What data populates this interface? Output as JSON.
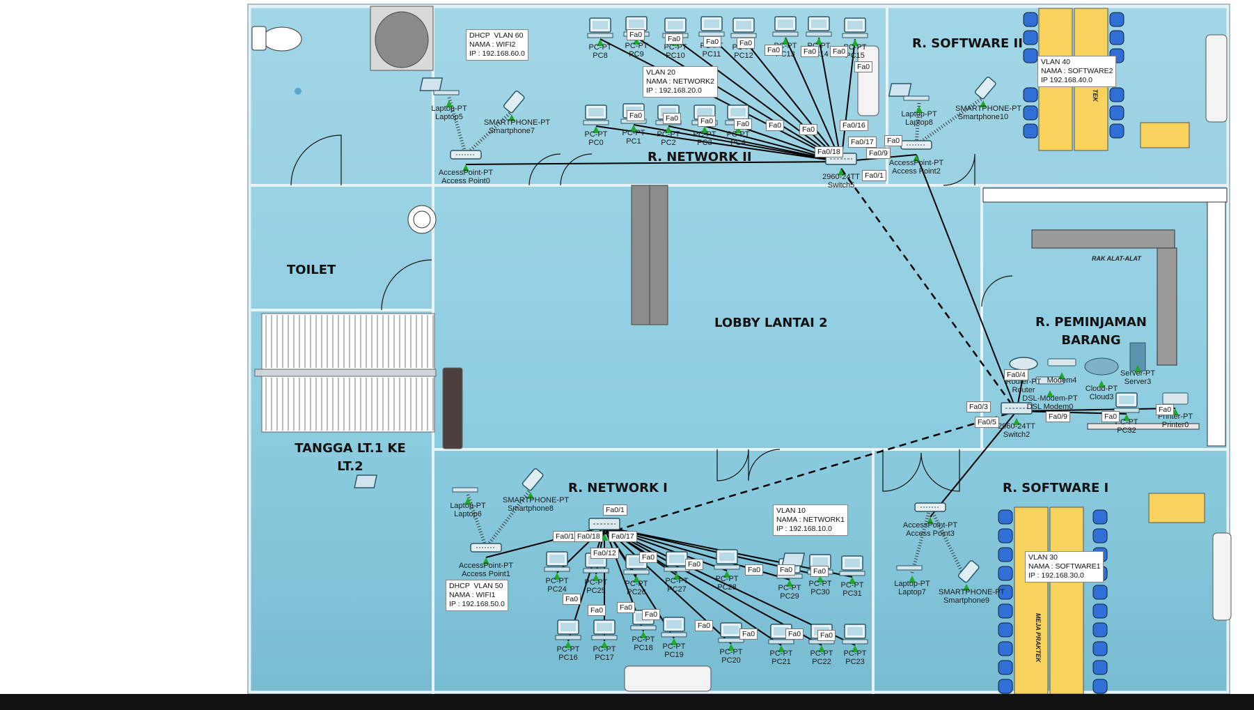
{
  "rooms": {
    "toilet": "TOILET",
    "tangga": "TANGGA LT.1 KE LT.2",
    "lobby": "LOBBY  LANTAI 2",
    "network2": "R. NETWORK II",
    "software2": "R. SOFTWARE II",
    "network1": "R. NETWORK I",
    "software1": "R. SOFTWARE I",
    "peminjaman": "R. PEMINJAMAN BARANG"
  },
  "furniture": {
    "rak": "RAK ALAT-ALAT",
    "meja1": "MEJA PRAKTEK",
    "meja2": "TEK"
  },
  "vlan_notes": {
    "vlan60": "DHCP  VLAN 60\nNAMA : WIFI2\nIP : 192.168.60.0",
    "vlan20": "VLAN 20\nNAMA : NETWORK2\nIP : 192.168.20.0",
    "vlan40": "VLAN 40\nNAMA : SOFTWARE2\nIP 192.168.40.0",
    "vlan10": "VLAN 10\nNAMA : NETWORK1\nIP : 192.168.10.0",
    "vlan50": "DHCP  VLAN 50\nNAMA : WIFI1\nIP : 192.168.50.0",
    "vlan30": "VLAN 30\nNAMA : SOFTWARE1\nIP : 192.168.30.0"
  },
  "devices": [
    {
      "id": "pc8",
      "type": "PC-PT",
      "name": "PC8"
    },
    {
      "id": "pc9",
      "type": "PC-PT",
      "name": "PC9"
    },
    {
      "id": "pc10",
      "type": "PC-PT",
      "name": "PC10"
    },
    {
      "id": "pc11",
      "type": "PC-PT",
      "name": "PC11"
    },
    {
      "id": "pc12",
      "type": "PC-PT",
      "name": "PC12"
    },
    {
      "id": "pc13",
      "type": "PC-PT",
      "name": "PC13"
    },
    {
      "id": "pc14",
      "type": "PC-PT",
      "name": "PC14"
    },
    {
      "id": "pc15",
      "type": "PC-PT",
      "name": "PC15"
    },
    {
      "id": "pc0",
      "type": "PC-PT",
      "name": "PC0"
    },
    {
      "id": "pc1",
      "type": "PC-PT",
      "name": "PC1"
    },
    {
      "id": "pc2",
      "type": "PC-PT",
      "name": "PC2"
    },
    {
      "id": "pc3",
      "type": "PC-PT",
      "name": "PC3"
    },
    {
      "id": "pc4",
      "type": "PC-PT",
      "name": "PC4"
    },
    {
      "id": "laptop5",
      "type": "Laptop-PT",
      "name": "Laptop5"
    },
    {
      "id": "smartphone7",
      "type": "SMARTPHONE-PT",
      "name": "Smartphone7"
    },
    {
      "id": "ap0",
      "type": "AccessPoint-PT",
      "name": "Access Point0"
    },
    {
      "id": "switch5",
      "type": "2960-24TT",
      "name": "Switch5"
    },
    {
      "id": "laptop8",
      "type": "Laptop-PT",
      "name": "Laptop8"
    },
    {
      "id": "smartphone10",
      "type": "SMARTPHONE-PT",
      "name": "Smartphone10"
    },
    {
      "id": "ap2",
      "type": "AccessPoint-PT",
      "name": "Access Point2"
    },
    {
      "id": "router",
      "type": "Router-PT",
      "name": "Router"
    },
    {
      "id": "modem4",
      "type": "",
      "name": "Modem4"
    },
    {
      "id": "modem0",
      "type": "DSL-Modem-PT",
      "name": "DSL Modem0"
    },
    {
      "id": "cloud3",
      "type": "Cloud-PT",
      "name": "Cloud3"
    },
    {
      "id": "server3",
      "type": "Server-PT",
      "name": "Server3"
    },
    {
      "id": "switch2",
      "type": "2960-24TT",
      "name": "Switch2"
    },
    {
      "id": "pc32",
      "type": "PC-PT",
      "name": "PC32"
    },
    {
      "id": "printer0",
      "type": "Printer-PT",
      "name": "Printer0"
    },
    {
      "id": "laptop6",
      "type": "Laptop-PT",
      "name": "Laptop6"
    },
    {
      "id": "smartphone8",
      "type": "SMARTPHONE-PT",
      "name": "Smartphone8"
    },
    {
      "id": "ap1",
      "type": "AccessPoint-PT",
      "name": "Access Point1"
    },
    {
      "id": "switch1",
      "type": "",
      "name": ""
    },
    {
      "id": "pc24",
      "type": "PC-PT",
      "name": "PC24"
    },
    {
      "id": "pc25",
      "type": "PC-PT",
      "name": "PC25"
    },
    {
      "id": "pc26",
      "type": "PC-PT",
      "name": "PC26"
    },
    {
      "id": "pc27",
      "type": "PC-PT",
      "name": "PC27"
    },
    {
      "id": "pc28",
      "type": "PC-PT",
      "name": "PC28"
    },
    {
      "id": "pc29",
      "type": "PC-PT",
      "name": "PC29"
    },
    {
      "id": "pc30",
      "type": "PC-PT",
      "name": "PC30"
    },
    {
      "id": "pc31",
      "type": "PC-PT",
      "name": "PC31"
    },
    {
      "id": "pc16",
      "type": "PC-PT",
      "name": "PC16"
    },
    {
      "id": "pc17",
      "type": "PC-PT",
      "name": "PC17"
    },
    {
      "id": "pc18",
      "type": "PC-PT",
      "name": "PC18"
    },
    {
      "id": "pc19",
      "type": "PC-PT",
      "name": "PC19"
    },
    {
      "id": "pc20",
      "type": "PC-PT",
      "name": "PC20"
    },
    {
      "id": "pc21",
      "type": "PC-PT",
      "name": "PC21"
    },
    {
      "id": "pc22",
      "type": "PC-PT",
      "name": "PC22"
    },
    {
      "id": "pc23",
      "type": "PC-PT",
      "name": "PC23"
    },
    {
      "id": "ap3",
      "type": "AccessPoint-PT",
      "name": "Access Point3"
    },
    {
      "id": "laptop7",
      "type": "Laptop-PT",
      "name": "Laptop7"
    },
    {
      "id": "smartphone9",
      "type": "SMARTPHONE-PT",
      "name": "Smartphone9"
    }
  ],
  "ports": [
    "Fa0",
    "Fa0/1",
    "Fa0/3",
    "Fa0/4",
    "Fa0/5",
    "Fa0/9",
    "Fa0/12",
    "Fa0/16",
    "Fa0/17",
    "Fa0/18"
  ],
  "colors": {
    "floor": "#96cedf",
    "floorDeep": "#7fbfd3",
    "wall": "#dfeef3",
    "desk": "#f7d25c",
    "chair": "#2f6fd6",
    "link": "#000000",
    "dot": "#1fa82a"
  }
}
